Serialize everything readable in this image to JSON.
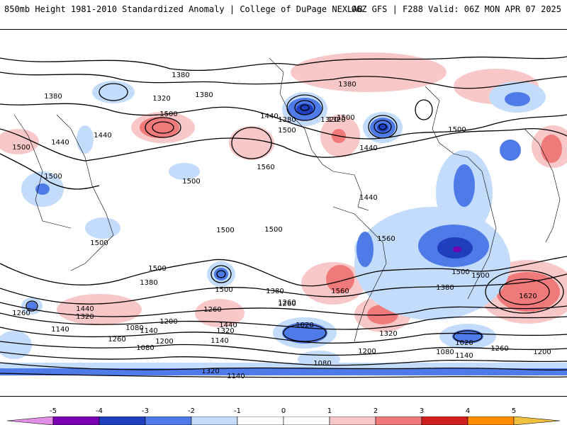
{
  "header": {
    "left_title": "850mb Height 1981-2010 Standardized Anomaly | College of DuPage NEXLAB",
    "right_title": "06Z GFS | F288 Valid: 06Z MON APR 07 2025"
  },
  "map": {
    "projection": "cylindrical world map",
    "contour_labels": [
      "1380",
      "1380",
      "1320",
      "1380",
      "1500",
      "1440",
      "1380",
      "1320",
      "1500",
      "1380",
      "1440",
      "1440",
      "1320",
      "1500",
      "1440",
      "1500",
      "1500",
      "1500",
      "1560",
      "1440",
      "1500",
      "1500",
      "1500",
      "1500",
      "1500",
      "1560",
      "1500",
      "1380",
      "1500",
      "1560",
      "1380",
      "1500",
      "1620",
      "1260",
      "1440",
      "1320",
      "1260",
      "1200",
      "1080",
      "1140",
      "1140",
      "1260",
      "1200",
      "1080",
      "1440",
      "1320",
      "1140",
      "1260",
      "1020",
      "1080",
      "1380",
      "1260",
      "1320",
      "1200",
      "1020",
      "1080",
      "1140",
      "1260",
      "1200",
      "1320",
      "1140",
      "1140"
    ],
    "colors": {
      "neg5": "#e28fe6",
      "neg4": "#7a00b3",
      "neg3": "#1f3fbf",
      "neg2": "#4f7be8",
      "neg1": "#c4dcfb",
      "pos1": "#f8c8c8",
      "pos2": "#f07a7a",
      "pos3": "#d02020",
      "pos4": "#ff8c00",
      "pos5": "#f0c040"
    }
  },
  "colorbar": {
    "ticks": [
      "-5",
      "-4",
      "-3",
      "-2",
      "-1",
      "0",
      "1",
      "2",
      "3",
      "4",
      "5"
    ]
  }
}
